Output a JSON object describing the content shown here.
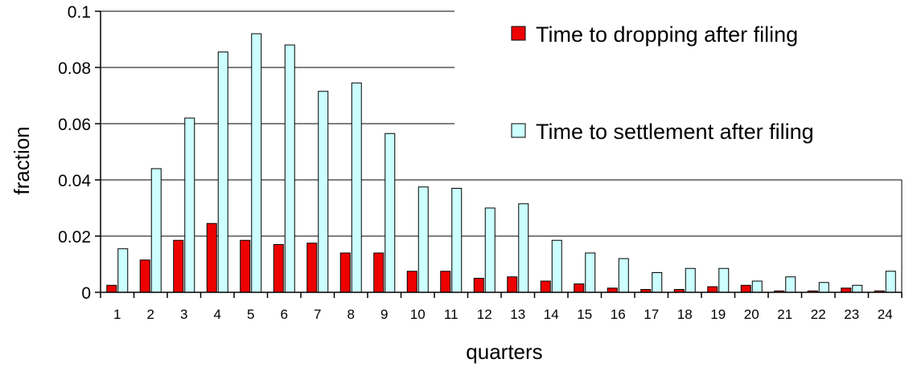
{
  "chart_data": {
    "type": "bar",
    "title": "",
    "xlabel": "quarters",
    "ylabel": "fraction",
    "ylim": [
      0,
      0.1
    ],
    "yticks": [
      "0",
      "0.02",
      "0.04",
      "0.06",
      "0.08",
      "0.1"
    ],
    "grid": "horizontal gridlines on major y ticks",
    "legend_position": "top-right",
    "categories": [
      "1",
      "2",
      "3",
      "4",
      "5",
      "6",
      "7",
      "8",
      "9",
      "10",
      "11",
      "12",
      "13",
      "14",
      "15",
      "16",
      "17",
      "18",
      "19",
      "20",
      "21",
      "22",
      "23",
      "24"
    ],
    "series": [
      {
        "name": "Time to dropping after filing",
        "color": "#ee0000",
        "values": [
          0.0025,
          0.0115,
          0.0185,
          0.0245,
          0.0185,
          0.017,
          0.0175,
          0.014,
          0.014,
          0.0075,
          0.0075,
          0.005,
          0.0055,
          0.004,
          0.003,
          0.0015,
          0.001,
          0.001,
          0.002,
          0.0025,
          0.0005,
          0.0005,
          0.0015,
          0.0005
        ]
      },
      {
        "name": "Time to settlement after filing",
        "color": "#ccffff",
        "values": [
          0.0155,
          0.044,
          0.062,
          0.0855,
          0.092,
          0.088,
          0.0715,
          0.0745,
          0.0565,
          0.0375,
          0.037,
          0.03,
          0.0315,
          0.0185,
          0.014,
          0.012,
          0.007,
          0.0085,
          0.0085,
          0.004,
          0.0055,
          0.0035,
          0.0025,
          0.0075
        ]
      }
    ]
  }
}
